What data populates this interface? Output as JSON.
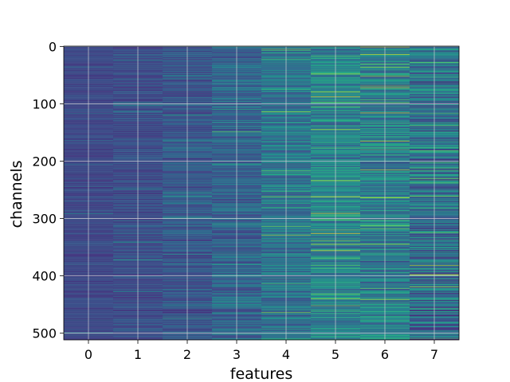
{
  "chart_data": {
    "type": "heatmap",
    "title": "",
    "xlabel": "features",
    "ylabel": "channels",
    "x_ticks": [
      "0",
      "1",
      "2",
      "3",
      "4",
      "5",
      "6",
      "7"
    ],
    "y_ticks": [
      "0",
      "100",
      "200",
      "300",
      "400",
      "500"
    ],
    "y_tick_values": [
      0,
      100,
      200,
      300,
      400,
      500
    ],
    "n_features": 8,
    "n_channels": 512,
    "ylim": [
      0,
      511
    ],
    "grid": true,
    "colormap": "viridis",
    "colorbar": false,
    "feature_intensity": [
      0.22,
      0.24,
      0.27,
      0.32,
      0.38,
      0.45,
      0.42,
      0.36
    ],
    "bright_stripes": [
      {
        "feature": 5,
        "channel": 88,
        "value": 0.95
      },
      {
        "feature": 5,
        "channel": 234,
        "value": 0.9
      },
      {
        "feature": 5,
        "channel": 262,
        "value": 0.98
      },
      {
        "feature": 5,
        "channel": 440,
        "value": 0.85
      },
      {
        "feature": 5,
        "channel": 452,
        "value": 0.8
      },
      {
        "feature": 6,
        "channel": 14,
        "value": 0.9
      },
      {
        "feature": 6,
        "channel": 52,
        "value": 0.85
      },
      {
        "feature": 6,
        "channel": 98,
        "value": 0.8
      },
      {
        "feature": 6,
        "channel": 264,
        "value": 0.9
      },
      {
        "feature": 6,
        "channel": 345,
        "value": 0.85
      },
      {
        "feature": 4,
        "channel": 114,
        "value": 0.85
      },
      {
        "feature": 4,
        "channel": 262,
        "value": 0.8
      },
      {
        "feature": 7,
        "channel": 138,
        "value": 0.75
      },
      {
        "feature": 7,
        "channel": 325,
        "value": 0.75
      },
      {
        "feature": 3,
        "channel": 110,
        "value": 0.6
      },
      {
        "feature": 1,
        "channel": 372,
        "value": 0.55
      },
      {
        "feature": 2,
        "channel": 470,
        "value": 0.5
      }
    ]
  }
}
